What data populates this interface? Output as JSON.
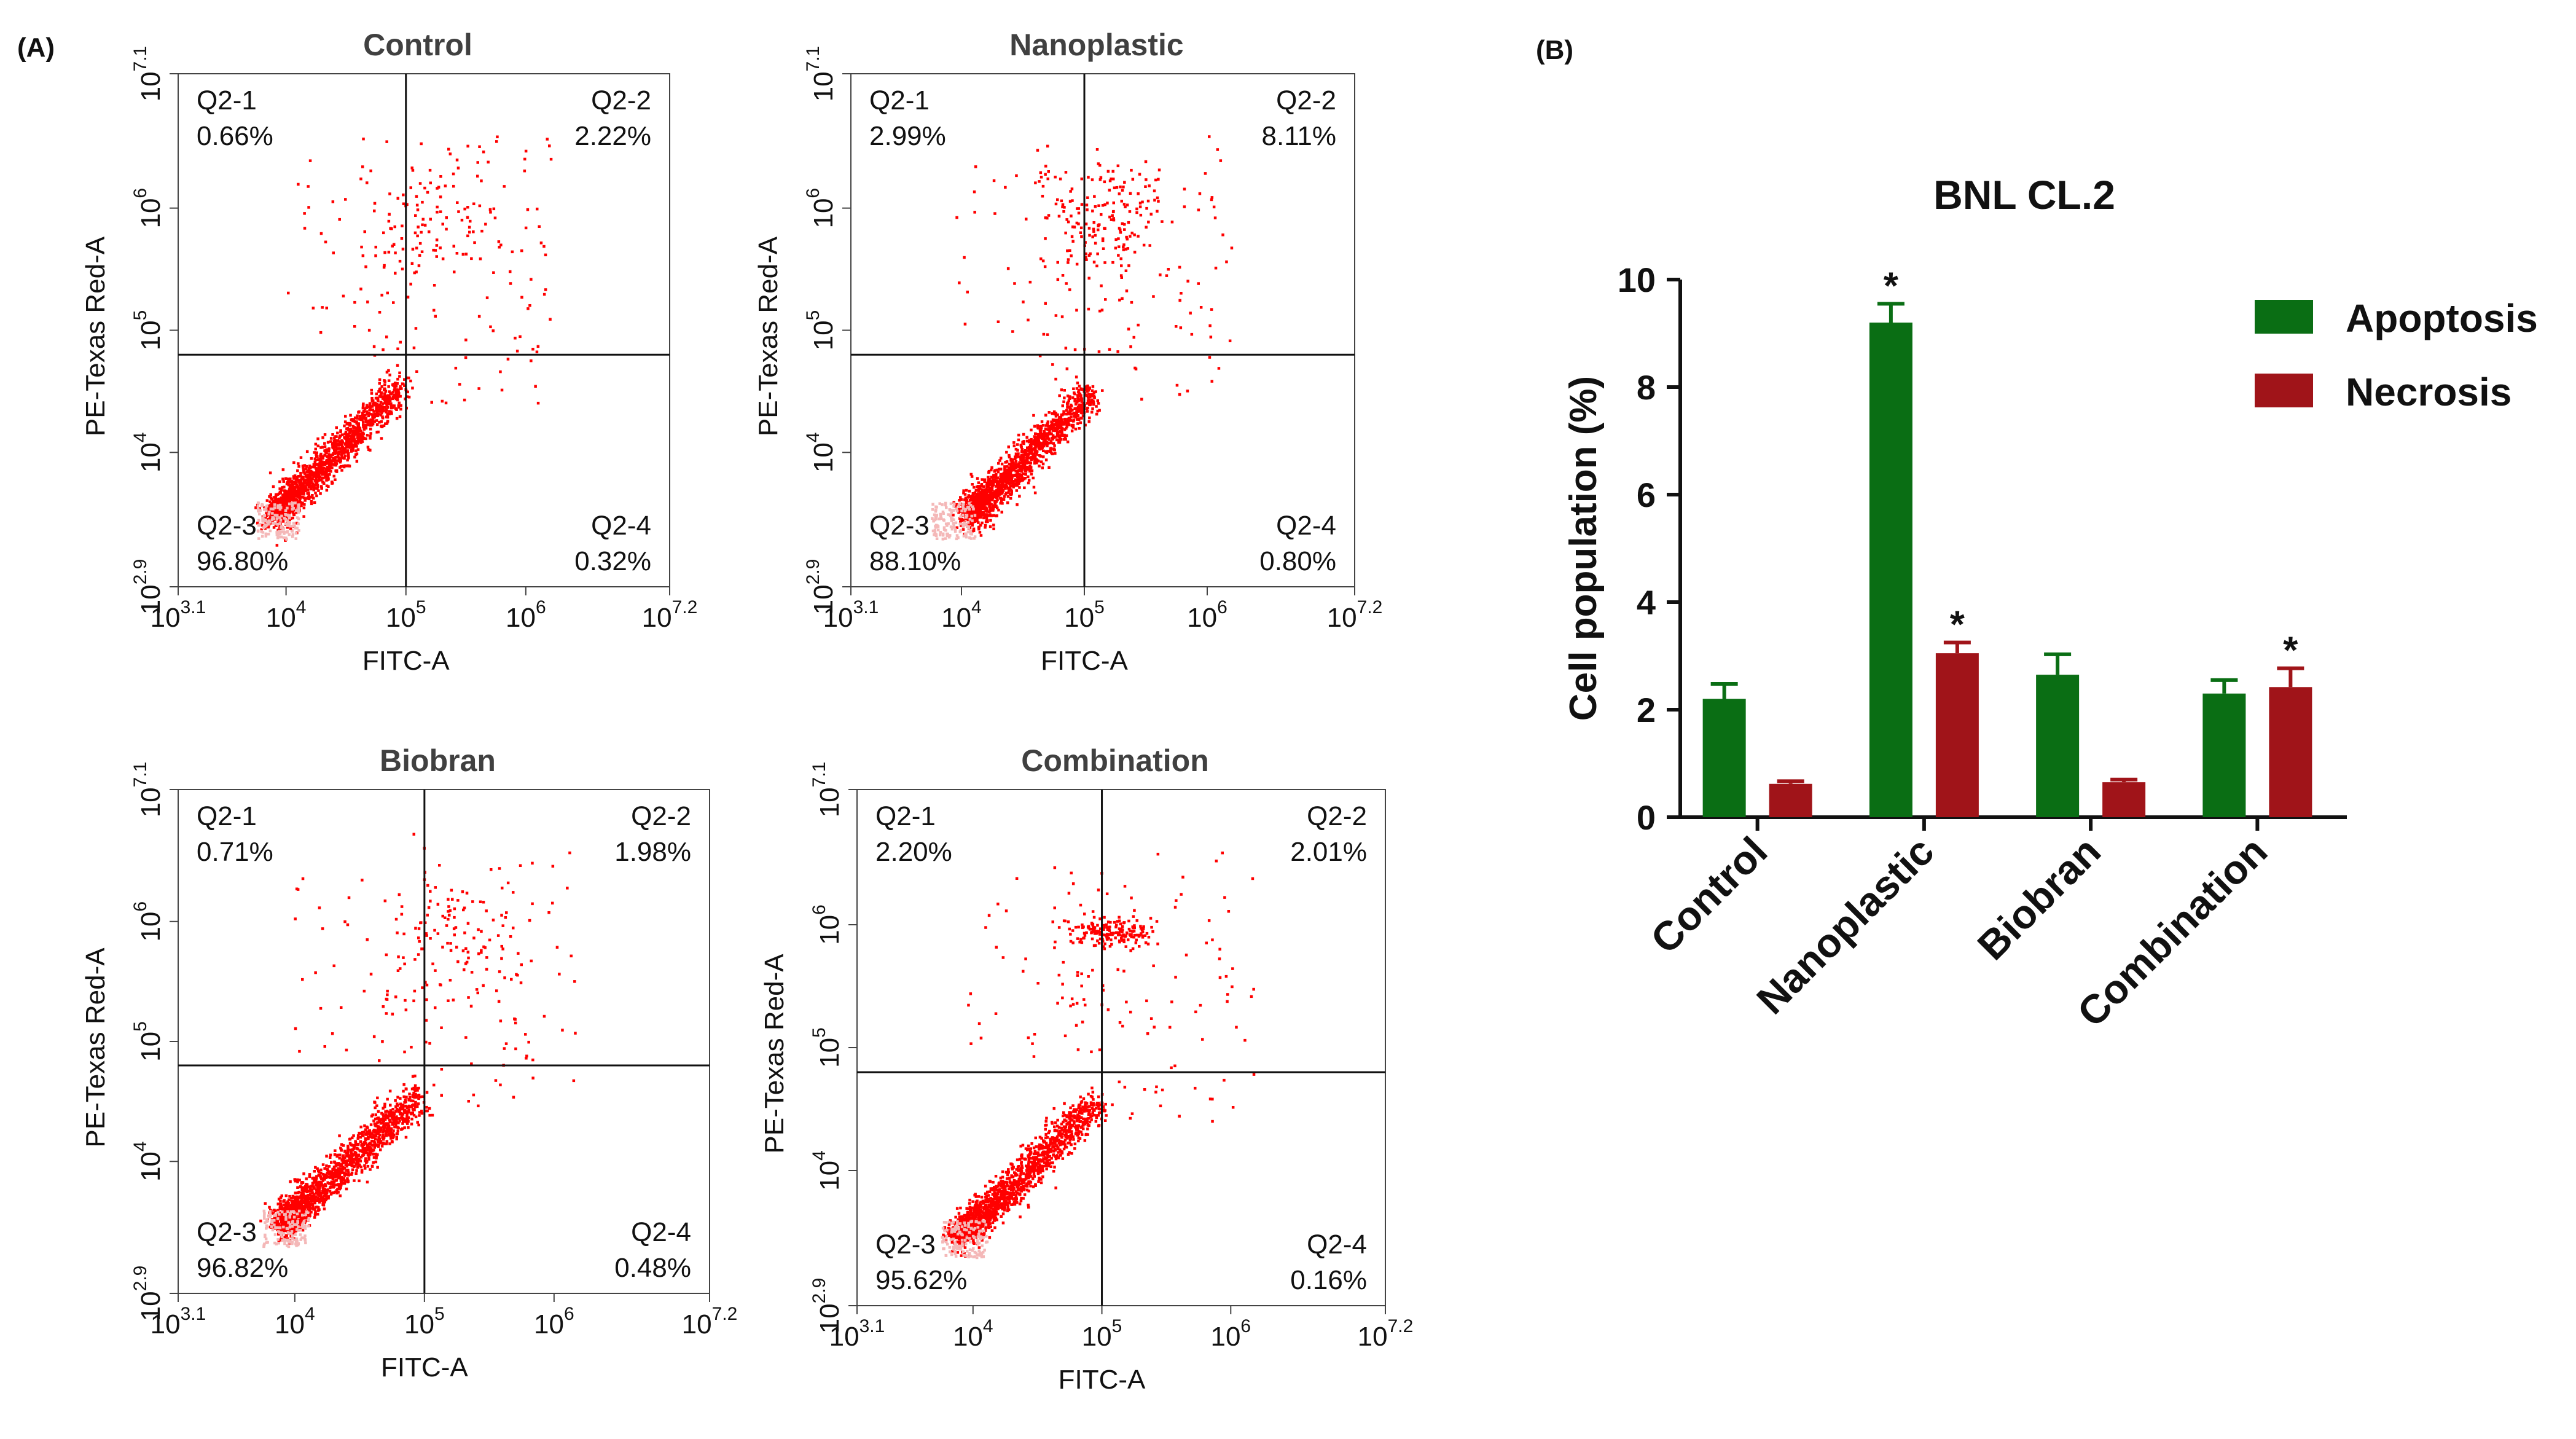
{
  "panel_a_label": "(A)",
  "panel_b_label": "(B)",
  "chart_data": [
    {
      "type": "scatter",
      "title": "Control",
      "xlabel": "FITC-A",
      "ylabel": "PE-Texas Red-A",
      "x_scale": "log",
      "y_scale": "log",
      "xlim_log10": [
        3.1,
        7.2
      ],
      "ylim_log10": [
        2.9,
        7.1
      ],
      "x_ticks": [
        {
          "base": "10",
          "exp": "3.1"
        },
        {
          "base": "10",
          "exp": "4"
        },
        {
          "base": "10",
          "exp": "5"
        },
        {
          "base": "10",
          "exp": "6"
        },
        {
          "base": "10",
          "exp": "7.2"
        }
      ],
      "y_ticks": [
        {
          "base": "10",
          "exp": "2.9"
        },
        {
          "base": "10",
          "exp": "4"
        },
        {
          "base": "10",
          "exp": "5"
        },
        {
          "base": "10",
          "exp": "6"
        },
        {
          "base": "10",
          "exp": "7.1"
        }
      ],
      "gate_log10": {
        "x": 5.0,
        "y": 4.8
      },
      "quadrants": {
        "q1": {
          "name": "Q2-1",
          "value": "0.66%"
        },
        "q2": {
          "name": "Q2-2",
          "value": "2.22%"
        },
        "q3": {
          "name": "Q2-3",
          "value": "96.80%"
        },
        "q4": {
          "name": "Q2-4",
          "value": "0.32%"
        }
      },
      "point_color": "#ff0000"
    },
    {
      "type": "scatter",
      "title": "Nanoplastic",
      "xlabel": "FITC-A",
      "ylabel": "PE-Texas Red-A",
      "x_scale": "log",
      "y_scale": "log",
      "xlim_log10": [
        3.1,
        7.2
      ],
      "ylim_log10": [
        2.9,
        7.1
      ],
      "x_ticks": [
        {
          "base": "10",
          "exp": "3.1"
        },
        {
          "base": "10",
          "exp": "4"
        },
        {
          "base": "10",
          "exp": "5"
        },
        {
          "base": "10",
          "exp": "6"
        },
        {
          "base": "10",
          "exp": "7.2"
        }
      ],
      "y_ticks": [
        {
          "base": "10",
          "exp": "2.9"
        },
        {
          "base": "10",
          "exp": "4"
        },
        {
          "base": "10",
          "exp": "5"
        },
        {
          "base": "10",
          "exp": "6"
        },
        {
          "base": "10",
          "exp": "7.1"
        }
      ],
      "gate_log10": {
        "x": 5.0,
        "y": 4.8
      },
      "quadrants": {
        "q1": {
          "name": "Q2-1",
          "value": "2.99%"
        },
        "q2": {
          "name": "Q2-2",
          "value": "8.11%"
        },
        "q3": {
          "name": "Q2-3",
          "value": "88.10%"
        },
        "q4": {
          "name": "Q2-4",
          "value": "0.80%"
        }
      },
      "point_color": "#ff0000"
    },
    {
      "type": "scatter",
      "title": "Biobran",
      "xlabel": "FITC-A",
      "ylabel": "PE-Texas Red-A",
      "x_scale": "log",
      "y_scale": "log",
      "xlim_log10": [
        3.1,
        7.2
      ],
      "ylim_log10": [
        2.9,
        7.1
      ],
      "x_ticks": [
        {
          "base": "10",
          "exp": "3.1"
        },
        {
          "base": "10",
          "exp": "4"
        },
        {
          "base": "10",
          "exp": "5"
        },
        {
          "base": "10",
          "exp": "6"
        },
        {
          "base": "10",
          "exp": "7.2"
        }
      ],
      "y_ticks": [
        {
          "base": "10",
          "exp": "2.9"
        },
        {
          "base": "10",
          "exp": "4"
        },
        {
          "base": "10",
          "exp": "5"
        },
        {
          "base": "10",
          "exp": "6"
        },
        {
          "base": "10",
          "exp": "7.1"
        }
      ],
      "gate_log10": {
        "x": 5.0,
        "y": 4.8
      },
      "quadrants": {
        "q1": {
          "name": "Q2-1",
          "value": "0.71%"
        },
        "q2": {
          "name": "Q2-2",
          "value": "1.98%"
        },
        "q3": {
          "name": "Q2-3",
          "value": "96.82%"
        },
        "q4": {
          "name": "Q2-4",
          "value": "0.48%"
        }
      },
      "point_color": "#ff0000"
    },
    {
      "type": "scatter",
      "title": "Combination",
      "xlabel": "FITC-A",
      "ylabel": "PE-Texas Red-A",
      "x_scale": "log",
      "y_scale": "log",
      "xlim_log10": [
        3.1,
        7.2
      ],
      "ylim_log10": [
        2.9,
        7.1
      ],
      "x_ticks": [
        {
          "base": "10",
          "exp": "3.1"
        },
        {
          "base": "10",
          "exp": "4"
        },
        {
          "base": "10",
          "exp": "5"
        },
        {
          "base": "10",
          "exp": "6"
        },
        {
          "base": "10",
          "exp": "7.2"
        }
      ],
      "y_ticks": [
        {
          "base": "10",
          "exp": "2.9"
        },
        {
          "base": "10",
          "exp": "4"
        },
        {
          "base": "10",
          "exp": "5"
        },
        {
          "base": "10",
          "exp": "6"
        },
        {
          "base": "10",
          "exp": "7.1"
        }
      ],
      "gate_log10": {
        "x": 5.0,
        "y": 4.8
      },
      "quadrants": {
        "q1": {
          "name": "Q2-1",
          "value": "2.20%"
        },
        "q2": {
          "name": "Q2-2",
          "value": "2.01%"
        },
        "q3": {
          "name": "Q2-3",
          "value": "95.62%"
        },
        "q4": {
          "name": "Q2-4",
          "value": "0.16%"
        }
      },
      "point_color": "#ff0000"
    },
    {
      "type": "bar",
      "title": "BNL CL.2",
      "xlabel": "",
      "ylabel": "Cell population (%)",
      "ylim": [
        0,
        10
      ],
      "y_ticks": [
        "0",
        "2",
        "4",
        "6",
        "8",
        "10"
      ],
      "categories": [
        "Control",
        "Nanoplastic",
        "Biobran",
        "Combination"
      ],
      "series": [
        {
          "name": "Apoptosis",
          "color": "#0a6e14",
          "values": [
            2.2,
            9.2,
            2.65,
            2.3
          ],
          "errors": [
            0.28,
            0.35,
            0.38,
            0.25
          ],
          "significance": [
            "",
            "*",
            "",
            ""
          ]
        },
        {
          "name": "Necrosis",
          "color": "#a01419",
          "values": [
            0.62,
            3.05,
            0.65,
            2.42
          ],
          "errors": [
            0.05,
            0.2,
            0.05,
            0.35
          ],
          "significance": [
            "",
            "*",
            "",
            "*"
          ]
        }
      ],
      "legend_position": "top-right",
      "significance_marker": "*"
    }
  ]
}
